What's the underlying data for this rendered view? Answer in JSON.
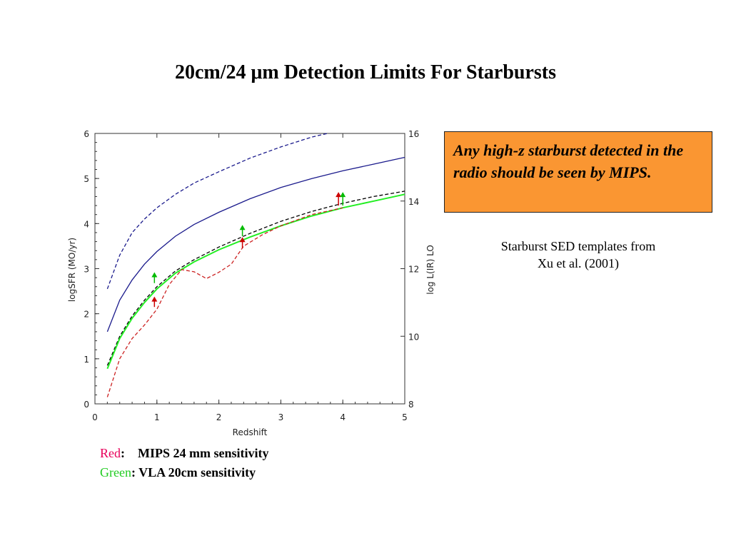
{
  "slide": {
    "title": "20cm/24 μm Detection Limits For Starbursts",
    "callout": "Any high-z starburst detected in the radio should be seen by MIPS.",
    "note_line1": "Starburst SED templates from",
    "note_line2": "Xu et al. (2001)"
  },
  "legend": {
    "red_label": "Red",
    "red_text": ":    MIPS 24 mm sensitivity",
    "green_label": "Green",
    "green_text": ": VLA 20cm sensitivity"
  },
  "colors": {
    "callout_bg": "#fa9632",
    "red": "#e8005a",
    "green": "#22cc22",
    "blue": "#1a1a8c"
  },
  "chart_data": {
    "type": "line",
    "xlabel": "Redshift",
    "ylabel": "logSFR (MO/yr)",
    "y2label": "log L(IR) LO",
    "xlim": [
      0,
      5
    ],
    "ylim": [
      0,
      6
    ],
    "y2lim": [
      8,
      16
    ],
    "xticks": [
      0,
      1,
      2,
      3,
      4,
      5
    ],
    "yticks": [
      0,
      1,
      2,
      3,
      4,
      5,
      6
    ],
    "y2ticks": [
      8,
      10,
      12,
      14,
      16
    ],
    "series": [
      {
        "style": "solid",
        "color": "#1a1a8c",
        "x": [
          0.2,
          0.4,
          0.6,
          0.8,
          1.0,
          1.3,
          1.6,
          2.0,
          2.5,
          3.0,
          3.5,
          4.0,
          4.5,
          5.0
        ],
        "y": [
          1.6,
          2.3,
          2.75,
          3.1,
          3.38,
          3.72,
          3.98,
          4.25,
          4.55,
          4.8,
          5.0,
          5.17,
          5.32,
          5.47
        ]
      },
      {
        "style": "dashed",
        "color": "#1a1a8c",
        "x": [
          0.2,
          0.4,
          0.6,
          0.8,
          1.0,
          1.3,
          1.6,
          2.0,
          2.5,
          3.0,
          3.5,
          3.75
        ],
        "y": [
          2.55,
          3.3,
          3.8,
          4.1,
          4.35,
          4.65,
          4.9,
          5.15,
          5.45,
          5.7,
          5.92,
          6.0
        ]
      },
      {
        "style": "dashed",
        "color": "#000000",
        "x": [
          0.2,
          0.4,
          0.6,
          0.8,
          1.0,
          1.3,
          1.6,
          2.0,
          2.5,
          3.0,
          3.5,
          4.0,
          4.5,
          5.0
        ],
        "y": [
          0.85,
          1.5,
          1.95,
          2.3,
          2.6,
          2.95,
          3.2,
          3.48,
          3.78,
          4.05,
          4.27,
          4.45,
          4.6,
          4.72
        ]
      },
      {
        "style": "solid",
        "color": "#22ee22",
        "x": [
          0.2,
          0.4,
          0.6,
          0.8,
          1.0,
          1.3,
          1.6,
          2.0,
          2.5,
          3.0,
          3.5,
          4.0,
          4.5,
          5.0
        ],
        "y": [
          0.78,
          1.45,
          1.9,
          2.25,
          2.55,
          2.9,
          3.15,
          3.42,
          3.7,
          3.95,
          4.17,
          4.35,
          4.5,
          4.65
        ]
      },
      {
        "style": "dashed",
        "color": "#cc2222",
        "x": [
          0.2,
          0.4,
          0.6,
          0.8,
          1.0,
          1.2,
          1.4,
          1.6,
          1.8,
          2.0,
          2.2,
          2.4,
          2.7,
          3.0,
          3.5,
          4.0
        ],
        "y": [
          0.15,
          1.0,
          1.45,
          1.75,
          2.1,
          2.65,
          2.98,
          2.93,
          2.78,
          2.92,
          3.1,
          3.5,
          3.75,
          3.95,
          4.2,
          4.35
        ]
      }
    ],
    "arrows": [
      {
        "x": 0.96,
        "y_from": 2.15,
        "y_to": 2.38,
        "color": "#cc0000"
      },
      {
        "x": 0.96,
        "y_from": 2.68,
        "y_to": 2.92,
        "color": "#00bb00"
      },
      {
        "x": 2.38,
        "y_from": 3.45,
        "y_to": 3.7,
        "color": "#cc0000"
      },
      {
        "x": 2.38,
        "y_from": 3.72,
        "y_to": 3.97,
        "color": "#00bb00"
      },
      {
        "x": 3.93,
        "y_from": 4.4,
        "y_to": 4.7,
        "color": "#cc0000"
      },
      {
        "x": 4.0,
        "y_from": 4.4,
        "y_to": 4.7,
        "color": "#00bb00"
      }
    ]
  }
}
